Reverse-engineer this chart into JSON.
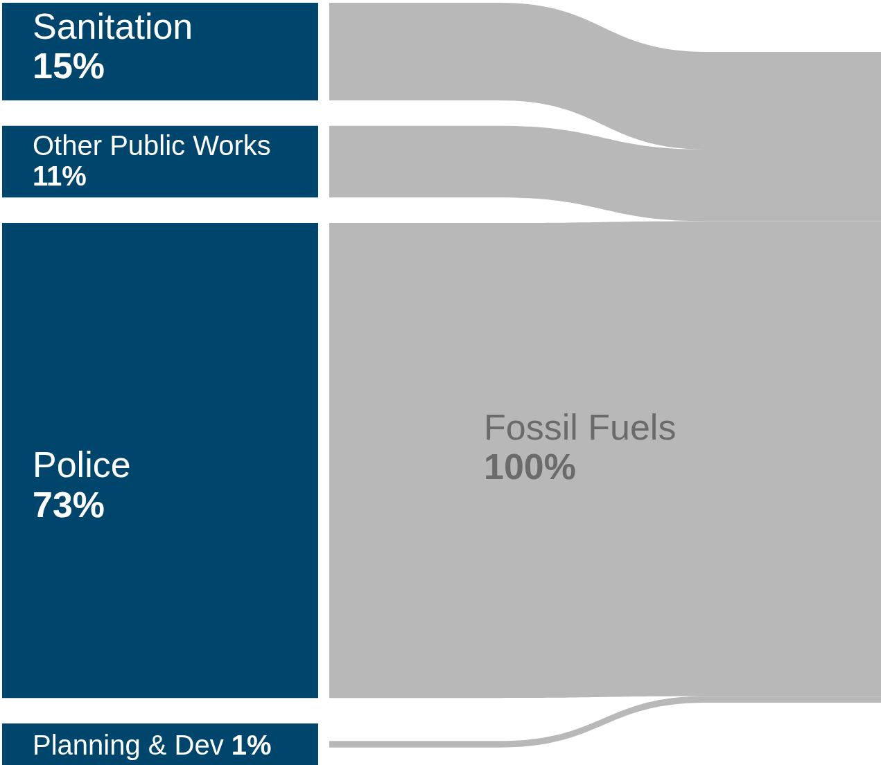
{
  "chart_data": {
    "type": "other",
    "categories": [
      "Sanitation",
      "Other Public Works",
      "Police",
      "Planning & Dev"
    ],
    "values": [
      15,
      11,
      73,
      1
    ],
    "value_labels": [
      "15%",
      "11%",
      "73%",
      "1%"
    ],
    "colors": [
      "#00456b",
      "#00456b",
      "#00456b",
      "#00456b"
    ],
    "annotations": [
      "Fossil Fuels"
    ],
    "totals": [
      "100%"
    ]
  }
}
